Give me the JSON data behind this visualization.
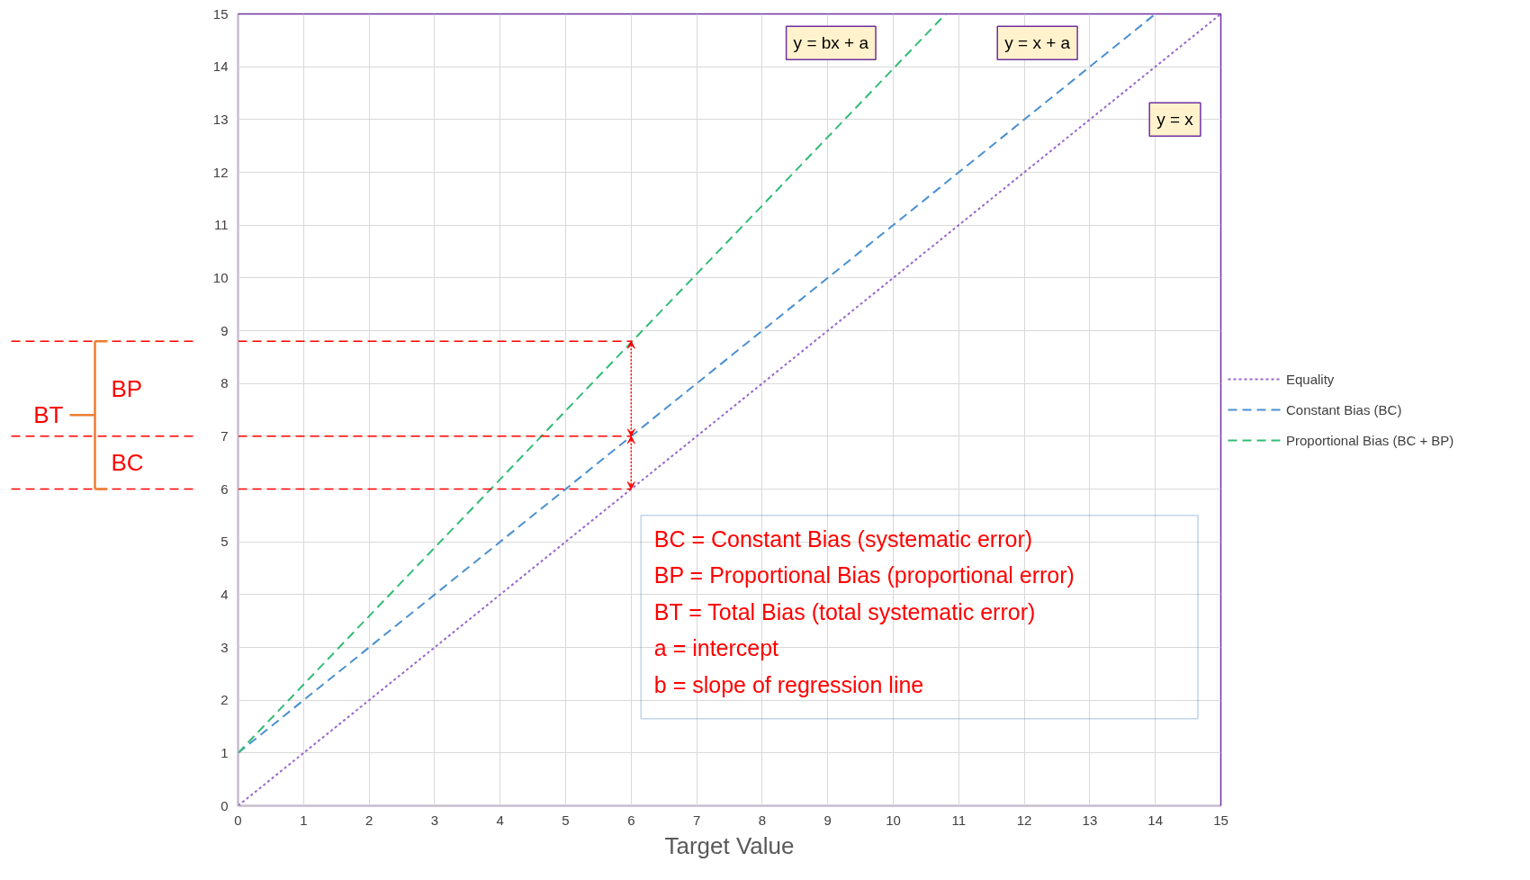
{
  "chart_data": {
    "type": "line",
    "xlabel": "Target Value",
    "xlim": [
      0,
      15
    ],
    "ylim": [
      0,
      15
    ],
    "xticks": [
      0,
      1,
      2,
      3,
      4,
      5,
      6,
      7,
      8,
      9,
      10,
      11,
      12,
      13,
      14,
      15
    ],
    "yticks": [
      0,
      1,
      2,
      3,
      4,
      5,
      6,
      7,
      8,
      9,
      10,
      11,
      12,
      13,
      14,
      15
    ],
    "series": [
      {
        "name": "Equality",
        "color": "#9966cc",
        "line_style": "dotted",
        "x": [
          0,
          15
        ],
        "values": [
          0,
          15
        ]
      },
      {
        "name": "Constant Bias (BC)",
        "color": "#4a90d0",
        "line_style": "dashed",
        "x": [
          0,
          14
        ],
        "values": [
          1,
          15
        ]
      },
      {
        "name": "Proportional Bias (BC + BP)",
        "color": "#33bb77",
        "line_style": "dashed",
        "x": [
          0,
          10.8
        ],
        "values": [
          1,
          15
        ]
      }
    ],
    "ref_lines": [
      {
        "axis": "y",
        "value": 8.8,
        "color": "#ff0000",
        "line_style": "dashed"
      },
      {
        "axis": "y",
        "value": 7,
        "color": "#ff0000",
        "line_style": "dashed"
      },
      {
        "axis": "y",
        "value": 6,
        "color": "#ff0000",
        "line_style": "dashed"
      }
    ],
    "annotations": [
      "y = bx + a",
      "y = x + a",
      "y = x",
      "BC = Constant Bias (systematic error)",
      "BP = Proportional Bias (proportional error)",
      "BT = Total Bias (total systematic error)",
      "a = intercept",
      "b = slope of regression line",
      "BP",
      "BC",
      "BT"
    ],
    "grid": true,
    "legend": "right"
  }
}
